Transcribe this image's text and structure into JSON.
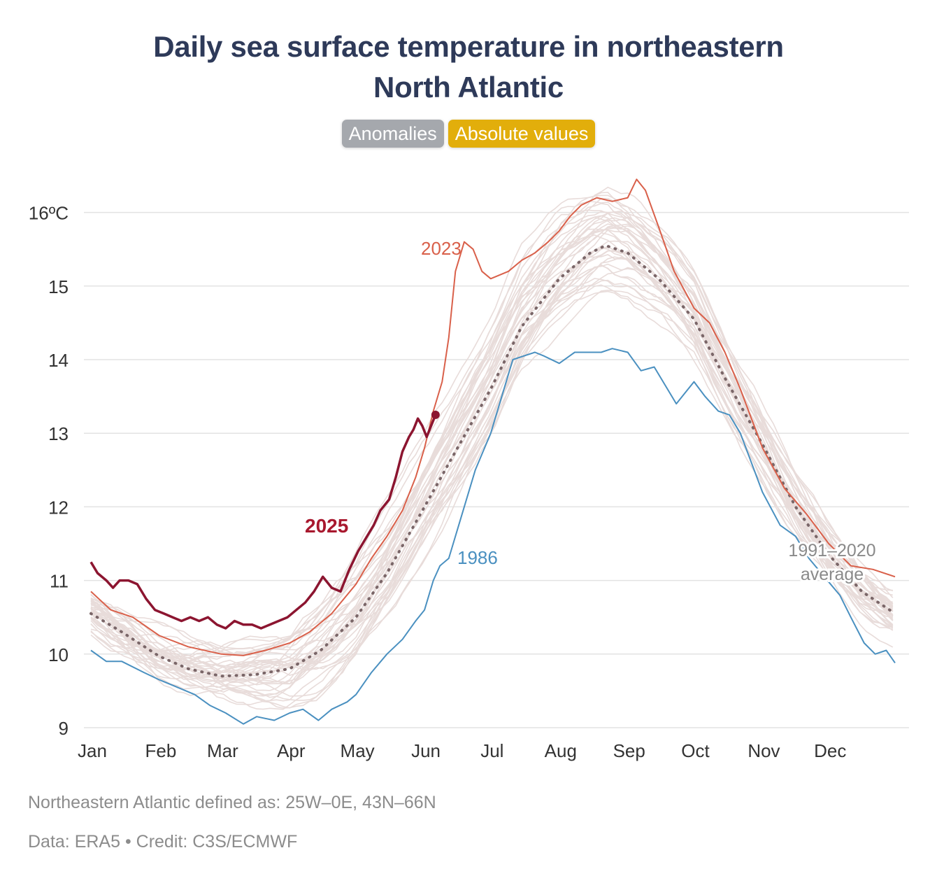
{
  "title_line1": "Daily sea surface temperature in northeastern",
  "title_line2": "North Atlantic",
  "toggles": {
    "anomalies": "Anomalies",
    "absolute": "Absolute values"
  },
  "colors": {
    "y2025": "#8c1530",
    "y2025_label": "#a8182e",
    "y2023": "#d9604a",
    "y1986": "#4a90c0",
    "average": "#7a6668",
    "other_years": "#e8dcda",
    "grid": "#e3e3e3",
    "toggle_inactive": "#a5a8ad",
    "toggle_active": "#e2ae0b"
  },
  "chart_data": {
    "type": "line",
    "ylim": [
      9,
      16.5
    ],
    "xlim_day_of_year": [
      1,
      365
    ],
    "y_ticks": [
      9,
      10,
      11,
      12,
      13,
      14,
      15,
      16
    ],
    "y_tick_labels": [
      "9",
      "10",
      "11",
      "12",
      "13",
      "14",
      "15",
      "16ºC"
    ],
    "month_labels": [
      "Jan",
      "Feb",
      "Mar",
      "Apr",
      "May",
      "Jun",
      "Jul",
      "Aug",
      "Sep",
      "Oct",
      "Nov",
      "Dec"
    ],
    "month_start_days": [
      1,
      32,
      60,
      91,
      121,
      152,
      182,
      213,
      244,
      274,
      305,
      335
    ],
    "grid": true,
    "series": [
      {
        "name": "1991–2020 average",
        "label_lines": [
          "1991–2020",
          "average"
        ],
        "style": "dotted",
        "points": [
          [
            1,
            10.55
          ],
          [
            15,
            10.3
          ],
          [
            32,
            9.97
          ],
          [
            45,
            9.8
          ],
          [
            60,
            9.7
          ],
          [
            75,
            9.72
          ],
          [
            91,
            9.8
          ],
          [
            105,
            10.05
          ],
          [
            121,
            10.5
          ],
          [
            135,
            11.1
          ],
          [
            152,
            12.0
          ],
          [
            166,
            12.75
          ],
          [
            182,
            13.6
          ],
          [
            196,
            14.45
          ],
          [
            213,
            15.1
          ],
          [
            227,
            15.45
          ],
          [
            234,
            15.55
          ],
          [
            244,
            15.45
          ],
          [
            258,
            15.1
          ],
          [
            274,
            14.55
          ],
          [
            288,
            13.75
          ],
          [
            305,
            12.85
          ],
          [
            320,
            12.0
          ],
          [
            335,
            11.35
          ],
          [
            350,
            10.85
          ],
          [
            365,
            10.55
          ]
        ]
      },
      {
        "name": "2023",
        "label": "2023",
        "style": "solid",
        "points": [
          [
            1,
            10.85
          ],
          [
            10,
            10.6
          ],
          [
            20,
            10.5
          ],
          [
            32,
            10.25
          ],
          [
            45,
            10.1
          ],
          [
            60,
            10.0
          ],
          [
            70,
            9.98
          ],
          [
            80,
            10.05
          ],
          [
            91,
            10.15
          ],
          [
            100,
            10.3
          ],
          [
            110,
            10.55
          ],
          [
            121,
            10.95
          ],
          [
            128,
            11.3
          ],
          [
            135,
            11.6
          ],
          [
            142,
            11.95
          ],
          [
            148,
            12.4
          ],
          [
            152,
            12.8
          ],
          [
            156,
            13.3
          ],
          [
            160,
            13.7
          ],
          [
            163,
            14.3
          ],
          [
            166,
            15.2
          ],
          [
            170,
            15.6
          ],
          [
            174,
            15.5
          ],
          [
            178,
            15.2
          ],
          [
            182,
            15.1
          ],
          [
            190,
            15.2
          ],
          [
            196,
            15.35
          ],
          [
            202,
            15.45
          ],
          [
            208,
            15.6
          ],
          [
            213,
            15.75
          ],
          [
            218,
            15.95
          ],
          [
            223,
            16.1
          ],
          [
            230,
            16.2
          ],
          [
            237,
            16.15
          ],
          [
            244,
            16.2
          ],
          [
            248,
            16.45
          ],
          [
            252,
            16.3
          ],
          [
            258,
            15.8
          ],
          [
            265,
            15.2
          ],
          [
            274,
            14.7
          ],
          [
            281,
            14.5
          ],
          [
            288,
            14.1
          ],
          [
            295,
            13.6
          ],
          [
            305,
            12.8
          ],
          [
            315,
            12.25
          ],
          [
            325,
            11.9
          ],
          [
            335,
            11.5
          ],
          [
            345,
            11.2
          ],
          [
            355,
            11.15
          ],
          [
            365,
            11.05
          ]
        ]
      },
      {
        "name": "1986",
        "label": "1986",
        "style": "solid",
        "points": [
          [
            1,
            10.05
          ],
          [
            8,
            9.9
          ],
          [
            15,
            9.9
          ],
          [
            25,
            9.75
          ],
          [
            32,
            9.65
          ],
          [
            40,
            9.55
          ],
          [
            48,
            9.45
          ],
          [
            55,
            9.3
          ],
          [
            62,
            9.2
          ],
          [
            70,
            9.05
          ],
          [
            76,
            9.15
          ],
          [
            84,
            9.1
          ],
          [
            91,
            9.2
          ],
          [
            97,
            9.25
          ],
          [
            104,
            9.1
          ],
          [
            110,
            9.25
          ],
          [
            117,
            9.35
          ],
          [
            121,
            9.45
          ],
          [
            128,
            9.75
          ],
          [
            135,
            10.0
          ],
          [
            142,
            10.2
          ],
          [
            148,
            10.45
          ],
          [
            152,
            10.6
          ],
          [
            156,
            11.0
          ],
          [
            159,
            11.2
          ],
          [
            163,
            11.3
          ],
          [
            168,
            11.8
          ],
          [
            175,
            12.5
          ],
          [
            182,
            13.0
          ],
          [
            187,
            13.5
          ],
          [
            192,
            14.0
          ],
          [
            197,
            14.05
          ],
          [
            202,
            14.1
          ],
          [
            206,
            14.05
          ],
          [
            213,
            13.95
          ],
          [
            220,
            14.1
          ],
          [
            227,
            14.1
          ],
          [
            232,
            14.1
          ],
          [
            237,
            14.15
          ],
          [
            244,
            14.1
          ],
          [
            250,
            13.85
          ],
          [
            256,
            13.9
          ],
          [
            262,
            13.6
          ],
          [
            266,
            13.4
          ],
          [
            270,
            13.55
          ],
          [
            274,
            13.7
          ],
          [
            279,
            13.5
          ],
          [
            285,
            13.3
          ],
          [
            290,
            13.25
          ],
          [
            295,
            13.0
          ],
          [
            305,
            12.2
          ],
          [
            313,
            11.75
          ],
          [
            320,
            11.6
          ],
          [
            326,
            11.3
          ],
          [
            333,
            11.05
          ],
          [
            340,
            10.8
          ],
          [
            345,
            10.5
          ],
          [
            351,
            10.15
          ],
          [
            356,
            10.0
          ],
          [
            361,
            10.05
          ],
          [
            365,
            9.88
          ]
        ]
      },
      {
        "name": "2025",
        "label": "2025",
        "style": "solid",
        "current_point_marker": true,
        "points": [
          [
            1,
            11.25
          ],
          [
            4,
            11.1
          ],
          [
            8,
            11.0
          ],
          [
            11,
            10.9
          ],
          [
            14,
            11.0
          ],
          [
            18,
            11.0
          ],
          [
            22,
            10.95
          ],
          [
            26,
            10.75
          ],
          [
            30,
            10.6
          ],
          [
            34,
            10.55
          ],
          [
            38,
            10.5
          ],
          [
            42,
            10.45
          ],
          [
            46,
            10.5
          ],
          [
            50,
            10.45
          ],
          [
            54,
            10.5
          ],
          [
            58,
            10.4
          ],
          [
            62,
            10.35
          ],
          [
            66,
            10.45
          ],
          [
            70,
            10.4
          ],
          [
            74,
            10.4
          ],
          [
            78,
            10.35
          ],
          [
            82,
            10.4
          ],
          [
            86,
            10.45
          ],
          [
            90,
            10.5
          ],
          [
            94,
            10.6
          ],
          [
            98,
            10.7
          ],
          [
            102,
            10.85
          ],
          [
            106,
            11.05
          ],
          [
            110,
            10.9
          ],
          [
            114,
            10.85
          ],
          [
            118,
            11.15
          ],
          [
            122,
            11.4
          ],
          [
            126,
            11.6
          ],
          [
            129,
            11.75
          ],
          [
            132,
            11.95
          ],
          [
            136,
            12.1
          ],
          [
            139,
            12.4
          ],
          [
            142,
            12.75
          ],
          [
            145,
            12.95
          ],
          [
            147,
            13.05
          ],
          [
            149,
            13.2
          ],
          [
            151,
            13.1
          ],
          [
            153,
            12.95
          ],
          [
            155,
            13.1
          ],
          [
            157,
            13.25
          ]
        ]
      }
    ],
    "background_series_description_in_values": "Other years from 1979 onward shown as faint lines; generated as offsets around the average",
    "background_year_offsets": [
      -0.7,
      -0.6,
      -0.5,
      -0.45,
      -0.4,
      -0.35,
      -0.3,
      -0.25,
      -0.2,
      -0.15,
      -0.1,
      -0.05,
      0,
      0.05,
      0.1,
      0.15,
      0.2,
      0.25,
      0.3,
      0.35,
      0.4,
      0.45,
      0.5,
      0.55,
      0.6,
      0.7,
      0.8,
      0.9,
      1.0,
      -0.55,
      0.65,
      -0.15,
      0.25,
      0.35,
      0.05,
      -0.3,
      0.15,
      0.45,
      -0.05,
      0.75
    ]
  },
  "footnote_1": "Northeastern Atlantic defined as: 25W–0E, 43N–66N",
  "footnote_2": "Data: ERA5 • Credit: C3S/ECMWF"
}
